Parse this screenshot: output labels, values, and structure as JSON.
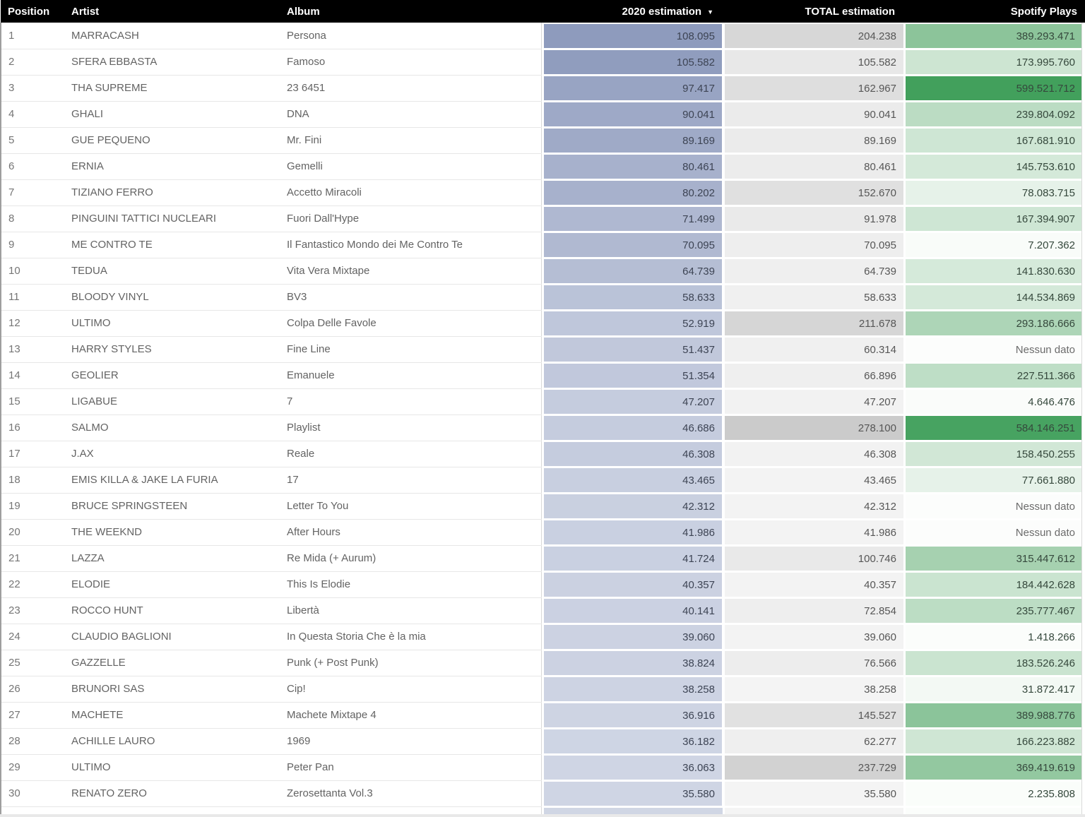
{
  "header": {
    "columns": [
      {
        "label": "Position"
      },
      {
        "label": "Artist"
      },
      {
        "label": "Album"
      },
      {
        "label": "2020 estimation",
        "sorted": "desc"
      },
      {
        "label": "TOTAL estimation"
      },
      {
        "label": "Spotify Plays"
      }
    ]
  },
  "no_data_label": "Nessun dato",
  "colors": {
    "header_bg": "#000000",
    "header_text": "#ffffff",
    "no_data_bg": "#fcfdfc",
    "scale_2020_estimation": {
      "anchors": [
        [
          35580,
          "#cfd5e4"
        ],
        [
          108095,
          "#8e9bbd"
        ]
      ]
    },
    "scale_total_estimation": {
      "anchors": [
        [
          35580,
          "#f4f4f4"
        ],
        [
          278100,
          "#cbcbcb"
        ]
      ]
    },
    "scale_spotify_plays": {
      "anchors": [
        [
          0,
          "#fbfdfb"
        ],
        [
          300000000,
          "#abd4b5"
        ],
        [
          599521712,
          "#42a05c"
        ]
      ]
    }
  },
  "rows": [
    {
      "position": "1",
      "artist": "MARRACASH",
      "album": "Persona",
      "est2020": "108.095",
      "estTotal": "204.238",
      "spotify": "389.293.471"
    },
    {
      "position": "2",
      "artist": "SFERA EBBASTA",
      "album": "Famoso",
      "est2020": "105.582",
      "estTotal": "105.582",
      "spotify": "173.995.760"
    },
    {
      "position": "3",
      "artist": "THA SUPREME",
      "album": "23 6451",
      "est2020": "97.417",
      "estTotal": "162.967",
      "spotify": "599.521.712"
    },
    {
      "position": "4",
      "artist": "GHALI",
      "album": "DNA",
      "est2020": "90.041",
      "estTotal": "90.041",
      "spotify": "239.804.092"
    },
    {
      "position": "5",
      "artist": "GUE PEQUENO",
      "album": "Mr. Fini",
      "est2020": "89.169",
      "estTotal": "89.169",
      "spotify": "167.681.910"
    },
    {
      "position": "6",
      "artist": "ERNIA",
      "album": "Gemelli",
      "est2020": "80.461",
      "estTotal": "80.461",
      "spotify": "145.753.610"
    },
    {
      "position": "7",
      "artist": "TIZIANO FERRO",
      "album": "Accetto Miracoli",
      "est2020": "80.202",
      "estTotal": "152.670",
      "spotify": "78.083.715"
    },
    {
      "position": "8",
      "artist": "PINGUINI TATTICI NUCLEARI",
      "album": "Fuori Dall'Hype",
      "est2020": "71.499",
      "estTotal": "91.978",
      "spotify": "167.394.907"
    },
    {
      "position": "9",
      "artist": "ME CONTRO TE",
      "album": "Il Fantastico Mondo dei Me Contro Te",
      "est2020": "70.095",
      "estTotal": "70.095",
      "spotify": "7.207.362"
    },
    {
      "position": "10",
      "artist": "TEDUA",
      "album": "Vita Vera Mixtape",
      "est2020": "64.739",
      "estTotal": "64.739",
      "spotify": "141.830.630"
    },
    {
      "position": "11",
      "artist": "BLOODY VINYL",
      "album": "BV3",
      "est2020": "58.633",
      "estTotal": "58.633",
      "spotify": "144.534.869"
    },
    {
      "position": "12",
      "artist": "ULTIMO",
      "album": "Colpa Delle Favole",
      "est2020": "52.919",
      "estTotal": "211.678",
      "spotify": "293.186.666"
    },
    {
      "position": "13",
      "artist": "HARRY STYLES",
      "album": "Fine Line",
      "est2020": "51.437",
      "estTotal": "60.314",
      "spotify": "Nessun dato"
    },
    {
      "position": "14",
      "artist": "GEOLIER",
      "album": "Emanuele",
      "est2020": "51.354",
      "estTotal": "66.896",
      "spotify": "227.511.366"
    },
    {
      "position": "15",
      "artist": "LIGABUE",
      "album": "7",
      "est2020": "47.207",
      "estTotal": "47.207",
      "spotify": "4.646.476"
    },
    {
      "position": "16",
      "artist": "SALMO",
      "album": "Playlist",
      "est2020": "46.686",
      "estTotal": "278.100",
      "spotify": "584.146.251"
    },
    {
      "position": "17",
      "artist": "J.AX",
      "album": "Reale",
      "est2020": "46.308",
      "estTotal": "46.308",
      "spotify": "158.450.255"
    },
    {
      "position": "18",
      "artist": "EMIS KILLA & JAKE LA FURIA",
      "album": "17",
      "est2020": "43.465",
      "estTotal": "43.465",
      "spotify": "77.661.880"
    },
    {
      "position": "19",
      "artist": "BRUCE SPRINGSTEEN",
      "album": "Letter To You",
      "est2020": "42.312",
      "estTotal": "42.312",
      "spotify": "Nessun dato"
    },
    {
      "position": "20",
      "artist": "THE WEEKND",
      "album": "After Hours",
      "est2020": "41.986",
      "estTotal": "41.986",
      "spotify": "Nessun dato"
    },
    {
      "position": "21",
      "artist": "LAZZA",
      "album": "Re Mida (+ Aurum)",
      "est2020": "41.724",
      "estTotal": "100.746",
      "spotify": "315.447.612"
    },
    {
      "position": "22",
      "artist": "ELODIE",
      "album": "This Is Elodie",
      "est2020": "40.357",
      "estTotal": "40.357",
      "spotify": "184.442.628"
    },
    {
      "position": "23",
      "artist": "ROCCO HUNT",
      "album": "Libertà",
      "est2020": "40.141",
      "estTotal": "72.854",
      "spotify": "235.777.467"
    },
    {
      "position": "24",
      "artist": "CLAUDIO BAGLIONI",
      "album": "In Questa Storia Che è la mia",
      "est2020": "39.060",
      "estTotal": "39.060",
      "spotify": "1.418.266"
    },
    {
      "position": "25",
      "artist": "GAZZELLE",
      "album": "Punk (+ Post Punk)",
      "est2020": "38.824",
      "estTotal": "76.566",
      "spotify": "183.526.246"
    },
    {
      "position": "26",
      "artist": "BRUNORI SAS",
      "album": "Cip!",
      "est2020": "38.258",
      "estTotal": "38.258",
      "spotify": "31.872.417"
    },
    {
      "position": "27",
      "artist": "MACHETE",
      "album": "Machete Mixtape 4",
      "est2020": "36.916",
      "estTotal": "145.527",
      "spotify": "389.988.776"
    },
    {
      "position": "28",
      "artist": "ACHILLE LAURO",
      "album": "1969",
      "est2020": "36.182",
      "estTotal": "62.277",
      "spotify": "166.223.882"
    },
    {
      "position": "29",
      "artist": "ULTIMO",
      "album": "Peter Pan",
      "est2020": "36.063",
      "estTotal": "237.729",
      "spotify": "369.419.619"
    },
    {
      "position": "30",
      "artist": "RENATO ZERO",
      "album": "Zerosettanta Vol.3",
      "est2020": "35.580",
      "estTotal": "35.580",
      "spotify": "2.235.808"
    }
  ],
  "partial_row": {
    "est2020_bg": "#d0d6e4",
    "estTotal_bg": "#f4f4f4",
    "spotify_bg": "#fbfdfb"
  }
}
